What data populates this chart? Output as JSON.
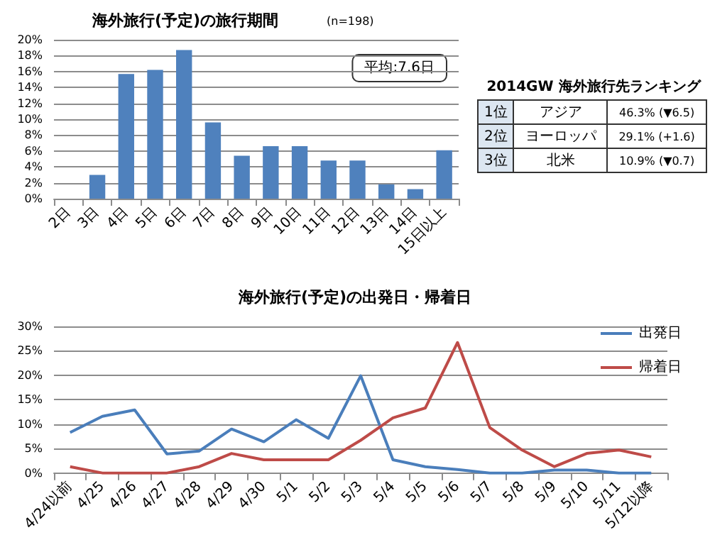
{
  "chart_data": [
    {
      "type": "bar",
      "title": "海外旅行(予定)の旅行期間",
      "subtitle": "(n=198)",
      "annotations": [
        "平均:7.6日"
      ],
      "categories": [
        "2日",
        "3日",
        "4日",
        "5日",
        "6日",
        "7日",
        "8日",
        "9日",
        "10日",
        "11日",
        "12日",
        "13日",
        "14日",
        "15日以上"
      ],
      "values": [
        0,
        3.0,
        15.7,
        16.2,
        18.7,
        9.6,
        5.4,
        6.6,
        6.6,
        4.8,
        4.8,
        1.8,
        1.2,
        6.1
      ],
      "color": "#4f81bd",
      "ylim": [
        0,
        20
      ],
      "yticks": [
        {
          "value": 0,
          "label": "0%"
        },
        {
          "value": 2,
          "label": "2%"
        },
        {
          "value": 4,
          "label": "4%"
        },
        {
          "value": 6,
          "label": "6%"
        },
        {
          "value": 8,
          "label": "8%"
        },
        {
          "value": 10,
          "label": "10%"
        },
        {
          "value": 12,
          "label": "12%"
        },
        {
          "value": 14,
          "label": "14%"
        },
        {
          "value": 16,
          "label": "16%"
        },
        {
          "value": 18,
          "label": "18%"
        },
        {
          "value": 20,
          "label": "20%"
        }
      ],
      "grid": "y",
      "legend": false
    },
    {
      "type": "other",
      "title": "2014GW  海外旅行先ランキング",
      "annotations": [
        "1位",
        "アジア",
        "46.3% (▼6.5)",
        "2位",
        "ヨーロッパ",
        "29.1% (+1.6)",
        "3位",
        "北米",
        "10.9% (▼0.7)"
      ]
    },
    {
      "type": "line",
      "title": "海外旅行(予定)の出発日・帰着日",
      "categories": [
        "4/24以前",
        "4/25",
        "4/26",
        "4/27",
        "4/28",
        "4/29",
        "4/30",
        "5/1",
        "5/2",
        "5/3",
        "5/4",
        "5/5",
        "5/6",
        "5/7",
        "5/8",
        "5/9",
        "5/10",
        "5/11",
        "5/12以降"
      ],
      "series": [
        {
          "name": "出発日",
          "color": "#4a7ebb",
          "values": [
            8.3,
            11.6,
            12.9,
            3.9,
            4.5,
            9.0,
            6.4,
            10.9,
            7.1,
            19.9,
            2.7,
            1.3,
            0.7,
            0,
            0,
            0.6,
            0.6,
            0,
            0
          ]
        },
        {
          "name": "帰着日",
          "color": "#be4b48",
          "values": [
            1.3,
            0,
            0,
            0,
            1.3,
            4.0,
            2.7,
            2.7,
            2.7,
            6.7,
            11.3,
            13.3,
            26.7,
            9.3,
            4.7,
            1.3,
            4.0,
            4.7,
            3.3
          ]
        }
      ],
      "ylim": [
        0,
        30
      ],
      "yticks": [
        {
          "value": 0,
          "label": "0%"
        },
        {
          "value": 5,
          "label": "5%"
        },
        {
          "value": 10,
          "label": "10%"
        },
        {
          "value": 15,
          "label": "15%"
        },
        {
          "value": 20,
          "label": "20%"
        },
        {
          "value": 25,
          "label": "25%"
        },
        {
          "value": 30,
          "label": "30%"
        }
      ],
      "grid": "y",
      "legend": "top right",
      "marker": "none",
      "line_style": "solid"
    }
  ]
}
